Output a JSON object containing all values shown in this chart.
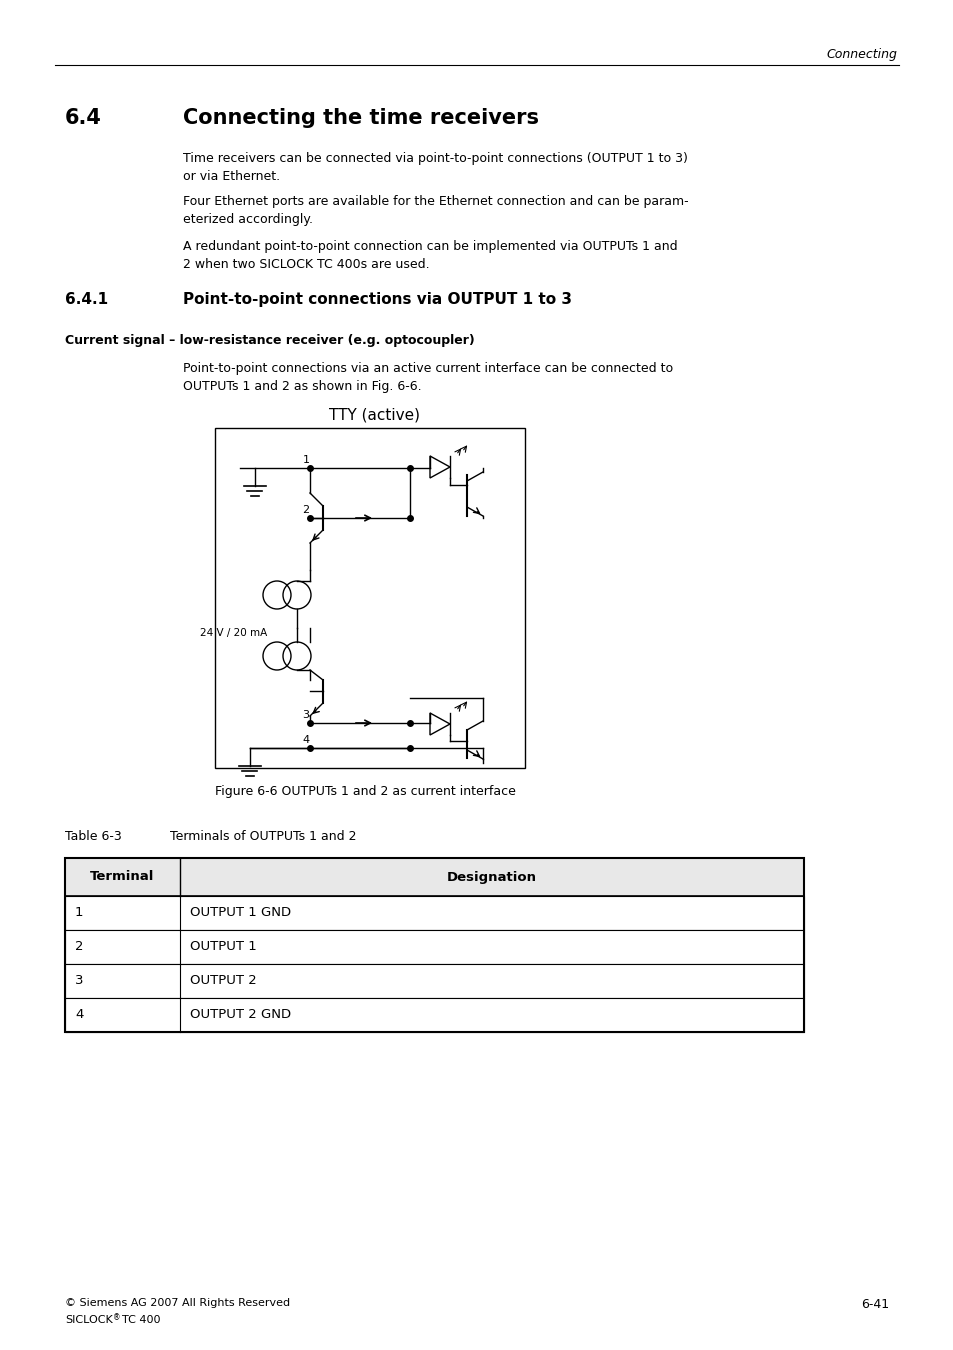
{
  "header_text": "Connecting",
  "section_number": "6.4",
  "section_title": "Connecting the time receivers",
  "para1": "Time receivers can be connected via point-to-point connections (OUTPUT 1 to 3)\nor via Ethernet.",
  "para2": "Four Ethernet ports are available for the Ethernet connection and can be param-\neterized accordingly.",
  "para3": "A redundant point-to-point connection can be implemented via OUTPUTs 1 and\n2 when two SICLOCK TC 400s are used.",
  "subsection_number": "6.4.1",
  "subsection_title": "Point-to-point connections via OUTPUT 1 to 3",
  "bold_heading": "Current signal – low-resistance receiver (e.g. optocoupler)",
  "body_text": "Point-to-point connections via an active current interface can be connected to\nOUTPUTs 1 and 2 as shown in Fig. 6-6.",
  "diagram_title": "TTY (active)",
  "label_24V": "24 V / 20 mA",
  "fig_caption": "Figure 6-6 OUTPUTs 1 and 2 as current interface",
  "table_title": "Table 6-3",
  "table_subtitle": "Terminals of OUTPUTs 1 and 2",
  "table_headers": [
    "Terminal",
    "Designation"
  ],
  "table_rows": [
    [
      "1",
      "OUTPUT 1 GND"
    ],
    [
      "2",
      "OUTPUT 1"
    ],
    [
      "3",
      "OUTPUT 2"
    ],
    [
      "4",
      "OUTPUT 2 GND"
    ]
  ],
  "footer_left1": "© Siemens AG 2007 All Rights Reserved",
  "footer_left2": "SICLOCK® TC 400",
  "footer_right": "6-41",
  "bg_color": "#ffffff"
}
